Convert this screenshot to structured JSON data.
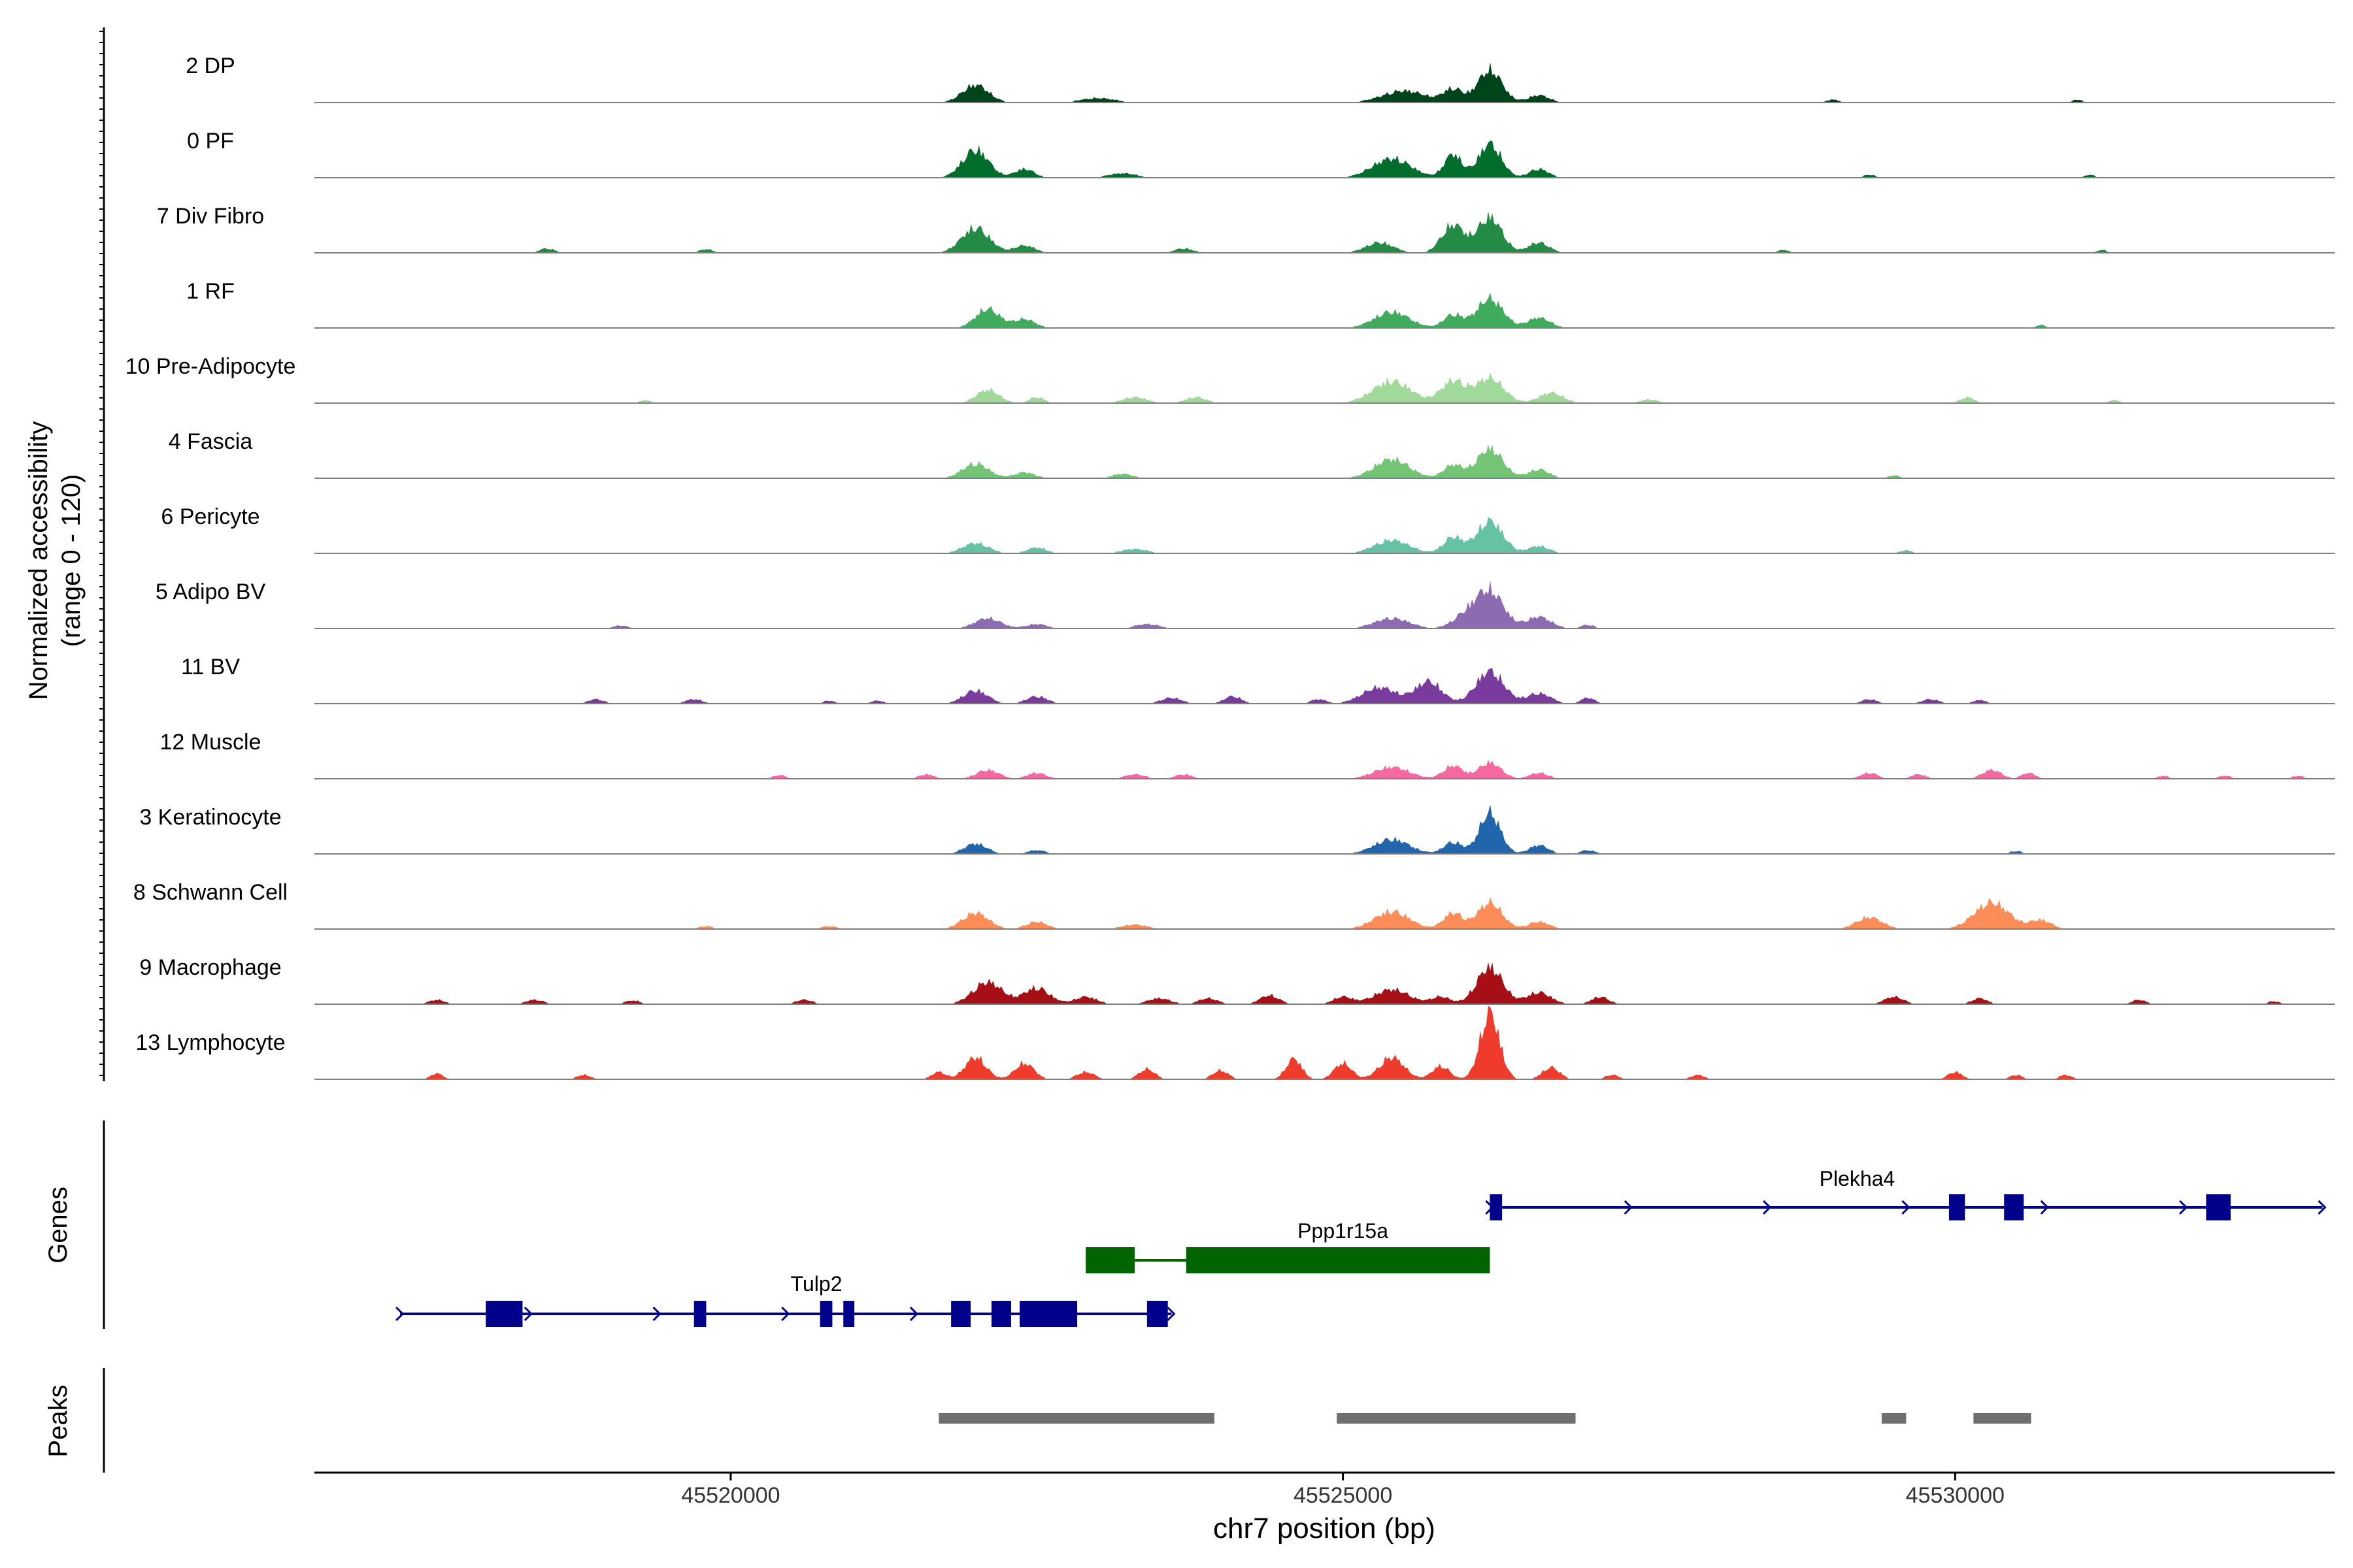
{
  "chart_data": {
    "type": "area",
    "title": "",
    "region": "chr7",
    "xlabel": "chr7 position (bp)",
    "xlim": [
      45516600,
      45533100
    ],
    "x_ticks": [
      45520000,
      45525000,
      45530000
    ],
    "x_tick_labels": [
      "45520000",
      "45525000",
      "45530000"
    ],
    "coverage_panel": {
      "ylabel_line1": "Normalized accessibility",
      "ylabel_line2": "(range 0 - 120)",
      "ylim": [
        0,
        120
      ],
      "tracks": [
        {
          "name": "2 DP",
          "color": "#00441b",
          "peaks": [
            [
              45522000,
              24,
              150
            ],
            [
              45523000,
              6,
              200
            ],
            [
              45525500,
              16,
              250
            ],
            [
              45525900,
              18,
              110
            ],
            [
              45526200,
              44,
              140
            ],
            [
              45526600,
              10,
              120
            ],
            [
              45529000,
              4,
              80
            ],
            [
              45531000,
              4,
              60
            ]
          ]
        },
        {
          "name": "0 PF",
          "color": "#006d2c",
          "peaks": [
            [
              45522000,
              38,
              150
            ],
            [
              45522400,
              12,
              110
            ],
            [
              45523200,
              6,
              160
            ],
            [
              45525400,
              26,
              220
            ],
            [
              45525900,
              32,
              100
            ],
            [
              45526200,
              46,
              130
            ],
            [
              45526600,
              12,
              110
            ],
            [
              45529300,
              4,
              70
            ],
            [
              45531100,
              4,
              60
            ]
          ]
        },
        {
          "name": "7 Div Fibro",
          "color": "#238b45",
          "peaks": [
            [
              45518500,
              6,
              90
            ],
            [
              45519800,
              5,
              80
            ],
            [
              45522000,
              34,
              160
            ],
            [
              45522400,
              10,
              120
            ],
            [
              45523700,
              6,
              110
            ],
            [
              45525300,
              14,
              160
            ],
            [
              45525900,
              38,
              130
            ],
            [
              45526200,
              48,
              140
            ],
            [
              45526600,
              14,
              120
            ],
            [
              45528600,
              4,
              70
            ],
            [
              45531200,
              4,
              60
            ]
          ]
        },
        {
          "name": "1 RF",
          "color": "#41ab5d",
          "peaks": [
            [
              45522100,
              26,
              140
            ],
            [
              45522400,
              12,
              120
            ],
            [
              45525400,
              22,
              200
            ],
            [
              45525900,
              18,
              110
            ],
            [
              45526200,
              40,
              150
            ],
            [
              45526600,
              14,
              130
            ],
            [
              45530700,
              4,
              60
            ]
          ]
        },
        {
          "name": "10 Pre-Adipocyte",
          "color": "#a1d99b",
          "peaks": [
            [
              45519300,
              4,
              70
            ],
            [
              45522100,
              18,
              130
            ],
            [
              45522500,
              8,
              90
            ],
            [
              45523300,
              8,
              140
            ],
            [
              45523800,
              8,
              120
            ],
            [
              45525400,
              30,
              220
            ],
            [
              45525900,
              30,
              140
            ],
            [
              45526200,
              34,
              160
            ],
            [
              45526700,
              14,
              140
            ],
            [
              45527500,
              5,
              100
            ],
            [
              45530100,
              8,
              80
            ],
            [
              45531300,
              4,
              70
            ]
          ]
        },
        {
          "name": "4 Fascia",
          "color": "#74c476",
          "peaks": [
            [
              45522000,
              20,
              150
            ],
            [
              45522400,
              8,
              120
            ],
            [
              45523200,
              6,
              120
            ],
            [
              45525400,
              26,
              200
            ],
            [
              45525900,
              18,
              110
            ],
            [
              45526200,
              40,
              150
            ],
            [
              45526600,
              12,
              120
            ],
            [
              45529500,
              4,
              70
            ]
          ]
        },
        {
          "name": "6 Pericyte",
          "color": "#66c2a5",
          "peaks": [
            [
              45522000,
              14,
              150
            ],
            [
              45522500,
              8,
              110
            ],
            [
              45523300,
              6,
              150
            ],
            [
              45525400,
              18,
              200
            ],
            [
              45525900,
              22,
              110
            ],
            [
              45526200,
              44,
              150
            ],
            [
              45526600,
              10,
              120
            ],
            [
              45529600,
              4,
              80
            ]
          ]
        },
        {
          "name": "5 Adipo BV",
          "color": "#8c6bb1",
          "peaks": [
            [
              45519100,
              4,
              90
            ],
            [
              45522100,
              14,
              150
            ],
            [
              45522500,
              6,
              120
            ],
            [
              45523400,
              6,
              140
            ],
            [
              45525400,
              14,
              200
            ],
            [
              45526000,
              16,
              150
            ],
            [
              45526200,
              50,
              160
            ],
            [
              45526600,
              16,
              140
            ],
            [
              45527000,
              5,
              80
            ]
          ]
        },
        {
          "name": "11 BV",
          "color": "#7a3b9f",
          "peaks": [
            [
              45518900,
              6,
              90
            ],
            [
              45519700,
              6,
              100
            ],
            [
              45520800,
              4,
              70
            ],
            [
              45521200,
              4,
              80
            ],
            [
              45522000,
              18,
              140
            ],
            [
              45522500,
              10,
              120
            ],
            [
              45523600,
              8,
              120
            ],
            [
              45524100,
              10,
              100
            ],
            [
              45524800,
              6,
              90
            ],
            [
              45525300,
              22,
              200
            ],
            [
              45525700,
              30,
              150
            ],
            [
              45526200,
              44,
              160
            ],
            [
              45526600,
              14,
              140
            ],
            [
              45527000,
              8,
              80
            ],
            [
              45529300,
              6,
              90
            ],
            [
              45529800,
              6,
              100
            ],
            [
              45530200,
              5,
              80
            ]
          ]
        },
        {
          "name": "12 Muscle",
          "color": "#f768a1",
          "peaks": [
            [
              45520400,
              5,
              80
            ],
            [
              45521600,
              6,
              90
            ],
            [
              45522100,
              12,
              130
            ],
            [
              45522500,
              8,
              110
            ],
            [
              45523300,
              6,
              120
            ],
            [
              45523700,
              6,
              100
            ],
            [
              45525400,
              16,
              200
            ],
            [
              45525900,
              18,
              110
            ],
            [
              45526200,
              22,
              130
            ],
            [
              45526600,
              8,
              110
            ],
            [
              45529300,
              8,
              100
            ],
            [
              45529700,
              6,
              90
            ],
            [
              45530300,
              12,
              110
            ],
            [
              45530600,
              8,
              80
            ],
            [
              45531700,
              4,
              70
            ],
            [
              45532200,
              4,
              80
            ],
            [
              45532800,
              4,
              70
            ]
          ]
        },
        {
          "name": "3 Keratinocyte",
          "color": "#2166ac",
          "peaks": [
            [
              45522000,
              14,
              130
            ],
            [
              45522500,
              5,
              110
            ],
            [
              45525400,
              20,
              200
            ],
            [
              45525900,
              16,
              110
            ],
            [
              45526200,
              56,
              120
            ],
            [
              45526600,
              12,
              110
            ],
            [
              45527000,
              5,
              90
            ],
            [
              45530500,
              4,
              70
            ]
          ]
        },
        {
          "name": "8 Schwann Cell",
          "color": "#fc8d59",
          "peaks": [
            [
              45519800,
              4,
              80
            ],
            [
              45520800,
              4,
              90
            ],
            [
              45522000,
              22,
              150
            ],
            [
              45522500,
              10,
              120
            ],
            [
              45523300,
              6,
              150
            ],
            [
              45525400,
              24,
              200
            ],
            [
              45525900,
              22,
              110
            ],
            [
              45526200,
              36,
              140
            ],
            [
              45526600,
              10,
              120
            ],
            [
              45529300,
              16,
              150
            ],
            [
              45530300,
              36,
              200
            ],
            [
              45530700,
              12,
              120
            ]
          ]
        },
        {
          "name": "9 Macrophage",
          "color": "#a50f15",
          "peaks": [
            [
              45517600,
              6,
              90
            ],
            [
              45518400,
              6,
              100
            ],
            [
              45519200,
              5,
              90
            ],
            [
              45520600,
              6,
              100
            ],
            [
              45522100,
              30,
              170
            ],
            [
              45522500,
              22,
              150
            ],
            [
              45522900,
              10,
              130
            ],
            [
              45523500,
              8,
              130
            ],
            [
              45523900,
              8,
              110
            ],
            [
              45524400,
              12,
              110
            ],
            [
              45525000,
              10,
              110
            ],
            [
              45525400,
              20,
              200
            ],
            [
              45525800,
              10,
              110
            ],
            [
              45526200,
              50,
              150
            ],
            [
              45526600,
              16,
              140
            ],
            [
              45527100,
              10,
              100
            ],
            [
              45529500,
              10,
              110
            ],
            [
              45530200,
              8,
              90
            ],
            [
              45531500,
              6,
              80
            ],
            [
              45532600,
              4,
              70
            ]
          ]
        },
        {
          "name": "13 Lymphocyte",
          "color": "#ef3b2c",
          "peaks": [
            [
              45517600,
              8,
              70
            ],
            [
              45518800,
              6,
              80
            ],
            [
              45521700,
              10,
              80
            ],
            [
              45522000,
              30,
              120
            ],
            [
              45522400,
              22,
              110
            ],
            [
              45522900,
              10,
              100
            ],
            [
              45523400,
              14,
              90
            ],
            [
              45524000,
              12,
              90
            ],
            [
              45524600,
              28,
              90
            ],
            [
              45525000,
              22,
              100
            ],
            [
              45525400,
              30,
              140
            ],
            [
              45525800,
              18,
              100
            ],
            [
              45526200,
              90,
              110
            ],
            [
              45526700,
              16,
              100
            ],
            [
              45527200,
              6,
              80
            ],
            [
              45527900,
              6,
              80
            ],
            [
              45530000,
              10,
              80
            ],
            [
              45530500,
              6,
              70
            ],
            [
              45530900,
              6,
              70
            ]
          ]
        }
      ]
    },
    "genes_panel": {
      "ylabel": "Genes",
      "genes": [
        {
          "name": "Plekha4",
          "strand": "+",
          "color": "#00008b",
          "start": 45526200,
          "end": 45533000,
          "exons": [
            [
              45526200,
              45526300
            ],
            [
              45529950,
              45530080
            ],
            [
              45530400,
              45530560
            ],
            [
              45532050,
              45532250
            ]
          ]
        },
        {
          "name": "Ppp1r15a",
          "strand": "-",
          "color": "#006400",
          "start": 45522900,
          "end": 45526200,
          "exons": [
            [
              45522900,
              45523300
            ],
            [
              45523720,
              45526200
            ]
          ]
        },
        {
          "name": "Tulp2",
          "strand": "+",
          "color": "#00008b",
          "start": 45517300,
          "end": 45523600,
          "exons": [
            [
              45518000,
              45518300
            ],
            [
              45519700,
              45519800
            ],
            [
              45520730,
              45520830
            ],
            [
              45520920,
              45521010
            ],
            [
              45521800,
              45521960
            ],
            [
              45522130,
              45522290
            ],
            [
              45522360,
              45522830
            ],
            [
              45523400,
              45523570
            ]
          ]
        }
      ]
    },
    "peaks_panel": {
      "ylabel": "Peaks",
      "peaks": [
        [
          45521700,
          45523950
        ],
        [
          45524950,
          45526900
        ],
        [
          45529400,
          45529600
        ],
        [
          45530150,
          45530620
        ]
      ]
    }
  }
}
